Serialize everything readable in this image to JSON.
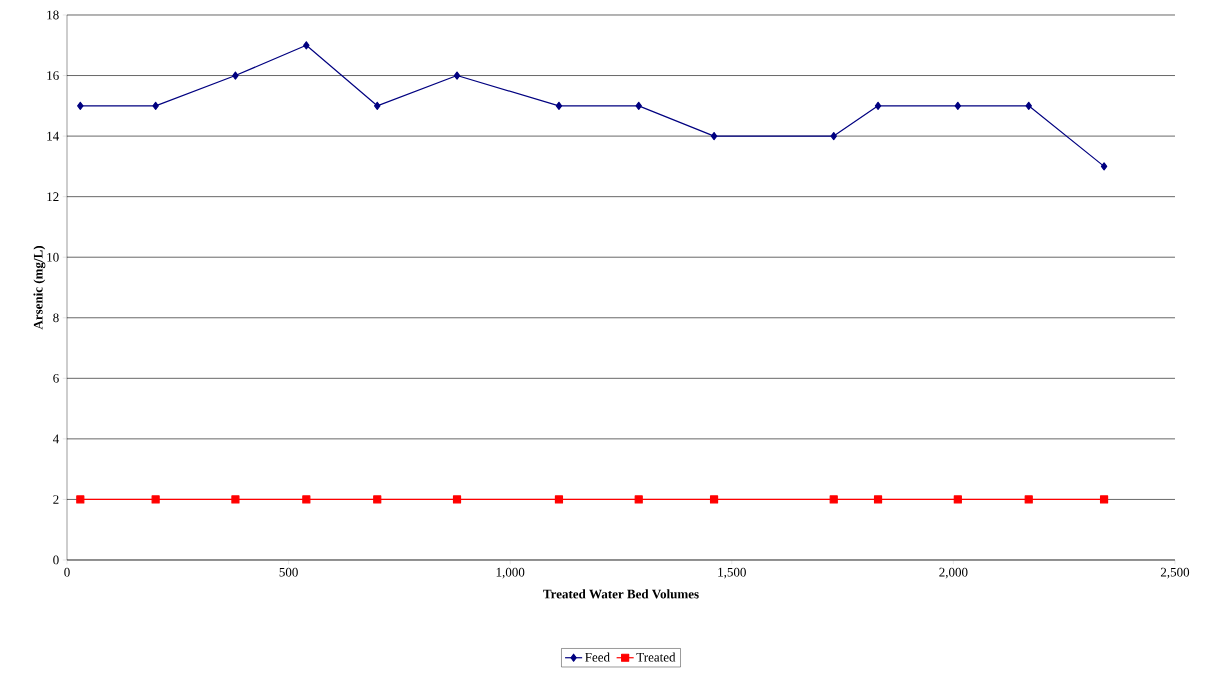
{
  "chart_data": {
    "type": "line",
    "xlabel": "Treated Water Bed Volumes",
    "ylabel": "Arsenic (mg/L)",
    "xlim": [
      0,
      2500
    ],
    "xticks": [
      0,
      {
        "value": 500,
        "label": "500"
      },
      {
        "value": 1000,
        "label": "1,000"
      },
      {
        "value": 1500,
        "label": "1,500"
      },
      {
        "value": 2000,
        "label": "2,000"
      },
      {
        "value": 2500,
        "label": "2,500"
      }
    ],
    "ylim": [
      0,
      18
    ],
    "yticks": [
      0,
      2,
      4,
      6,
      8,
      10,
      12,
      14,
      16,
      18
    ],
    "grid": "y",
    "legend": "bottom",
    "x": [
      30,
      200,
      380,
      540,
      700,
      880,
      1110,
      1290,
      1460,
      1730,
      1830,
      2010,
      2170,
      2340
    ],
    "series": [
      {
        "name": "Feed",
        "color": "#000080",
        "marker": "diamond",
        "values": [
          15,
          15,
          16,
          17,
          15,
          16,
          15,
          15,
          14,
          14,
          15,
          15,
          15,
          13
        ]
      },
      {
        "name": "Treated",
        "color": "#ff0000",
        "marker": "square",
        "values": [
          2,
          2,
          2,
          2,
          2,
          2,
          2,
          2,
          2,
          2,
          2,
          2,
          2,
          2
        ]
      }
    ]
  }
}
